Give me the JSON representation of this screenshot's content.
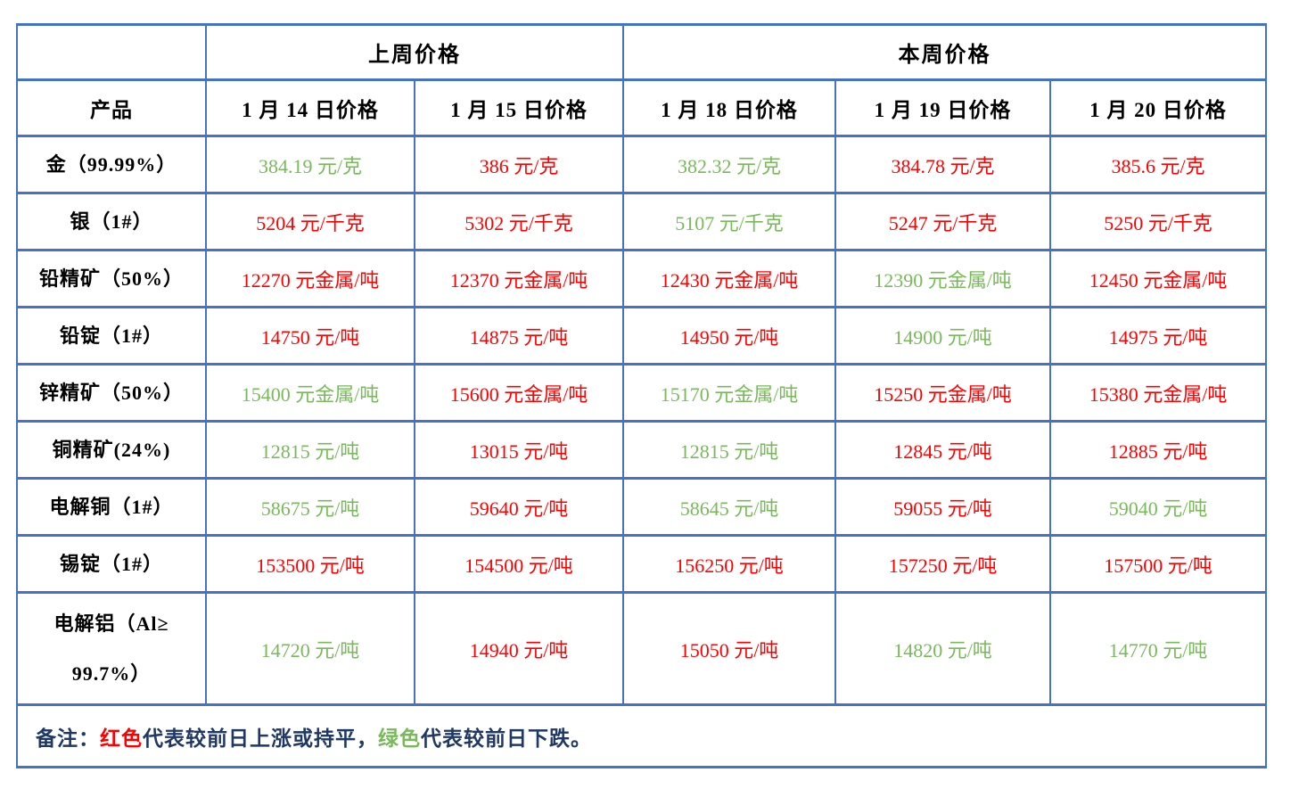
{
  "colors": {
    "up_red": "#fe0000",
    "down_green": "#78ba5a",
    "border_blue": "#4472c4",
    "text_black": "#000000",
    "note_ink": "#1f3864"
  },
  "table": {
    "group_headers": {
      "last_week": "上周价格",
      "this_week": "本周价格"
    },
    "column_headers": {
      "product": "产品",
      "dates": [
        "1 月 14 日价格",
        "1 月 15 日价格",
        "1 月 18 日价格",
        "1 月 19 日价格",
        "1 月 20 日价格"
      ]
    },
    "rows": [
      {
        "product": "金（99.99%）",
        "tall": false,
        "prices": [
          {
            "text": "384.19 元/克",
            "color": "green"
          },
          {
            "text": "386 元/克",
            "color": "red"
          },
          {
            "text": "382.32 元/克",
            "color": "green"
          },
          {
            "text": "384.78 元/克",
            "color": "red"
          },
          {
            "text": "385.6 元/克",
            "color": "red"
          }
        ]
      },
      {
        "product": "银（1#）",
        "tall": false,
        "prices": [
          {
            "text": "5204 元/千克",
            "color": "red"
          },
          {
            "text": "5302 元/千克",
            "color": "red"
          },
          {
            "text": "5107 元/千克",
            "color": "green"
          },
          {
            "text": "5247 元/千克",
            "color": "red"
          },
          {
            "text": "5250 元/千克",
            "color": "red"
          }
        ]
      },
      {
        "product": "铅精矿（50%）",
        "tall": false,
        "prices": [
          {
            "text": "12270 元金属/吨",
            "color": "red"
          },
          {
            "text": "12370 元金属/吨",
            "color": "red"
          },
          {
            "text": "12430 元金属/吨",
            "color": "red"
          },
          {
            "text": "12390 元金属/吨",
            "color": "green"
          },
          {
            "text": "12450 元金属/吨",
            "color": "red"
          }
        ]
      },
      {
        "product": "铅锭（1#）",
        "tall": false,
        "prices": [
          {
            "text": "14750 元/吨",
            "color": "red"
          },
          {
            "text": "14875 元/吨",
            "color": "red"
          },
          {
            "text": "14950 元/吨",
            "color": "red"
          },
          {
            "text": "14900 元/吨",
            "color": "green"
          },
          {
            "text": "14975 元/吨",
            "color": "red"
          }
        ]
      },
      {
        "product": "锌精矿（50%）",
        "tall": false,
        "prices": [
          {
            "text": "15400 元金属/吨",
            "color": "green"
          },
          {
            "text": "15600 元金属/吨",
            "color": "red"
          },
          {
            "text": "15170 元金属/吨",
            "color": "green"
          },
          {
            "text": "15250 元金属/吨",
            "color": "red"
          },
          {
            "text": "15380 元金属/吨",
            "color": "red"
          }
        ]
      },
      {
        "product": "铜精矿(24%)",
        "tall": false,
        "prices": [
          {
            "text": "12815 元/吨",
            "color": "green"
          },
          {
            "text": "13015 元/吨",
            "color": "red"
          },
          {
            "text": "12815 元/吨",
            "color": "green"
          },
          {
            "text": "12845 元/吨",
            "color": "red"
          },
          {
            "text": "12885 元/吨",
            "color": "red"
          }
        ]
      },
      {
        "product": "电解铜（1#）",
        "tall": false,
        "prices": [
          {
            "text": "58675 元/吨",
            "color": "green"
          },
          {
            "text": "59640 元/吨",
            "color": "red"
          },
          {
            "text": "58645 元/吨",
            "color": "green"
          },
          {
            "text": "59055 元/吨",
            "color": "red"
          },
          {
            "text": "59040 元/吨",
            "color": "green"
          }
        ]
      },
      {
        "product": "锡锭（1#）",
        "tall": false,
        "prices": [
          {
            "text": "153500 元/吨",
            "color": "red"
          },
          {
            "text": "154500 元/吨",
            "color": "red"
          },
          {
            "text": "156250 元/吨",
            "color": "red"
          },
          {
            "text": "157250 元/吨",
            "color": "red"
          },
          {
            "text": "157500 元/吨",
            "color": "red"
          }
        ]
      },
      {
        "product": "电解铝（Al≥\n99.7%）",
        "tall": true,
        "prices": [
          {
            "text": "14720 元/吨",
            "color": "green"
          },
          {
            "text": "14940 元/吨",
            "color": "red"
          },
          {
            "text": "15050 元/吨",
            "color": "red"
          },
          {
            "text": "14820 元/吨",
            "color": "green"
          },
          {
            "text": "14770 元/吨",
            "color": "green"
          }
        ]
      }
    ],
    "note_segments": [
      {
        "text": "备注：",
        "color": "ink"
      },
      {
        "text": "红色",
        "color": "red"
      },
      {
        "text": "代表较前日上涨或持平，",
        "color": "ink"
      },
      {
        "text": "绿色",
        "color": "green"
      },
      {
        "text": "代表较前日下跌。",
        "color": "ink"
      }
    ]
  }
}
